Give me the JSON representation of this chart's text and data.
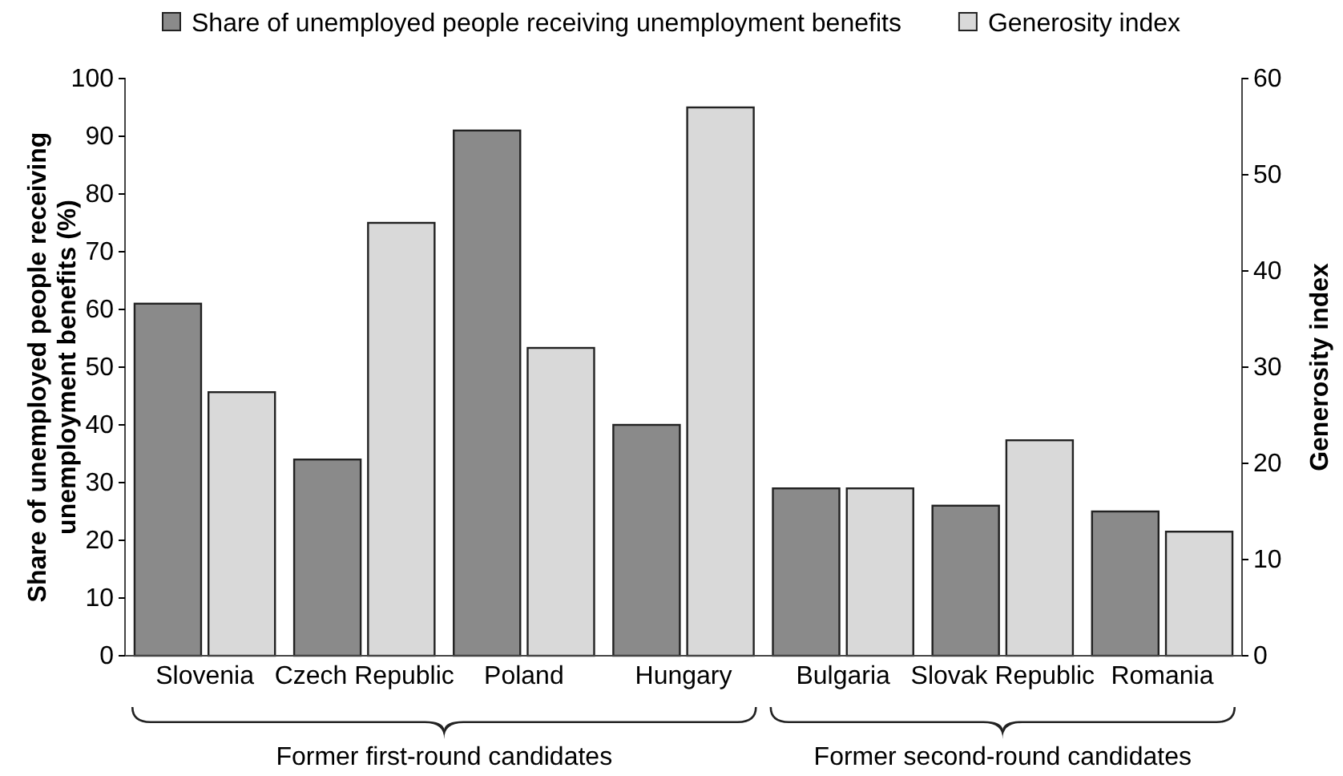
{
  "chart_data": {
    "type": "bar",
    "categories": [
      "Slovenia",
      "Czech Republic",
      "Poland",
      "Hungary",
      "Bulgaria",
      "Slovak Republic",
      "Romania"
    ],
    "series": [
      {
        "name": "Share of unemployed people receiving unemployment benefits",
        "color": "#8a8a8a",
        "values": [
          61,
          34,
          91,
          40,
          29,
          26,
          25
        ]
      },
      {
        "name": "Generosity index",
        "color": "#d9d9d9",
        "axis": "y2",
        "values": [
          27.4,
          45,
          32,
          57,
          17.4,
          22.4,
          12.9
        ]
      }
    ],
    "ylabel": "Share of unemployed people receiving unemployment benefits (%)",
    "y2label": "Generosity index",
    "ylim": [
      0,
      100
    ],
    "yticks": [
      0,
      10,
      20,
      30,
      40,
      50,
      60,
      70,
      80,
      90,
      100
    ],
    "y2lim": [
      0,
      60
    ],
    "y2ticks": [
      0,
      10,
      20,
      30,
      40,
      50,
      60
    ],
    "legend": "top",
    "grid": false,
    "annotations": [
      "Former first-round candidates",
      "Former second-round candidates"
    ]
  }
}
